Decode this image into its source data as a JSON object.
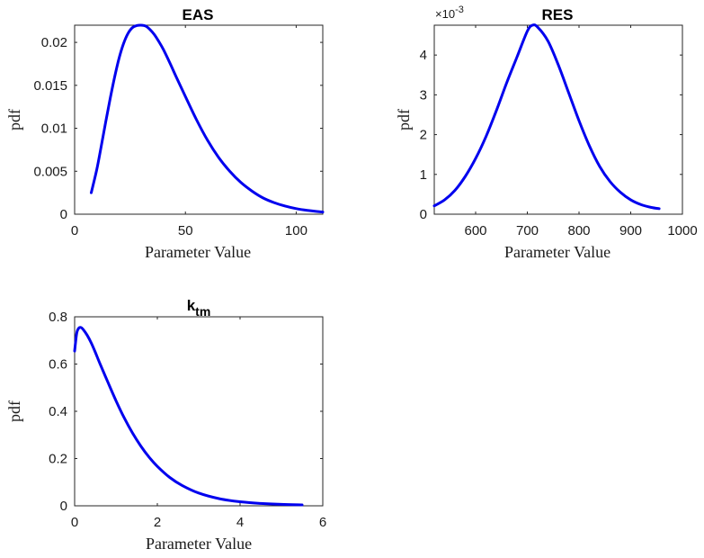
{
  "chart_data": [
    {
      "type": "line",
      "title": "EAS",
      "xlabel": "Parameter Value",
      "ylabel": "pdf",
      "xlim": [
        0,
        112
      ],
      "ylim": [
        0,
        0.022
      ],
      "xticks": [
        0,
        50,
        100
      ],
      "xtick_labels": [
        "0",
        "50",
        "100"
      ],
      "yticks": [
        0,
        0.005,
        0.01,
        0.015,
        0.02
      ],
      "ytick_labels": [
        "0",
        "0.005",
        "0.01",
        "0.015",
        "0.02"
      ],
      "grid": false,
      "series": [
        {
          "color": "#0000ee",
          "x": [
            7.5,
            10,
            12,
            14,
            16,
            18,
            20,
            22,
            24,
            26,
            28,
            30,
            32,
            34,
            36,
            38,
            40,
            43,
            46,
            50,
            55,
            60,
            65,
            70,
            75,
            80,
            85,
            90,
            95,
            100,
            105,
            112
          ],
          "y": [
            0.0025,
            0.0052,
            0.0079,
            0.0107,
            0.0134,
            0.0159,
            0.0181,
            0.0198,
            0.021,
            0.0217,
            0.02195,
            0.022,
            0.0219,
            0.0215,
            0.0209,
            0.0201,
            0.0192,
            0.0176,
            0.0159,
            0.0137,
            0.011,
            0.0086,
            0.0066,
            0.005,
            0.0037,
            0.0027,
            0.0019,
            0.00135,
            0.00095,
            0.00065,
            0.00045,
            0.00025
          ]
        }
      ]
    },
    {
      "type": "line",
      "title": "RES",
      "xlabel": "Parameter Value",
      "ylabel": "pdf",
      "xlim": [
        520,
        1000
      ],
      "ylim": [
        0,
        4.75
      ],
      "y_exponent_base": "×10",
      "y_exponent_power": "-3",
      "xticks": [
        600,
        700,
        800,
        900,
        1000
      ],
      "xtick_labels": [
        "600",
        "700",
        "800",
        "900",
        "1000"
      ],
      "yticks": [
        0,
        1,
        2,
        3,
        4
      ],
      "ytick_labels": [
        "0",
        "1",
        "2",
        "3",
        "4"
      ],
      "grid": false,
      "series": [
        {
          "color": "#0000ee",
          "x": [
            520,
            540,
            560,
            580,
            600,
            620,
            640,
            660,
            680,
            700,
            710,
            720,
            740,
            760,
            780,
            800,
            820,
            840,
            860,
            880,
            900,
            920,
            940,
            955
          ],
          "y": [
            0.21,
            0.36,
            0.6,
            0.95,
            1.4,
            1.95,
            2.6,
            3.3,
            3.95,
            4.6,
            4.75,
            4.7,
            4.35,
            3.75,
            3.05,
            2.35,
            1.72,
            1.2,
            0.82,
            0.55,
            0.36,
            0.24,
            0.17,
            0.14
          ]
        }
      ]
    },
    {
      "type": "line",
      "title": "k",
      "title_subscript": "tm",
      "xlabel": "Parameter Value",
      "ylabel": "pdf",
      "xlim": [
        0,
        6
      ],
      "ylim": [
        0,
        0.8
      ],
      "xticks": [
        0,
        2,
        4,
        6
      ],
      "xtick_labels": [
        "0",
        "2",
        "4",
        "6"
      ],
      "yticks": [
        0,
        0.2,
        0.4,
        0.6,
        0.8
      ],
      "ytick_labels": [
        "0",
        "0.2",
        "0.4",
        "0.6",
        "0.8"
      ],
      "grid": false,
      "series": [
        {
          "color": "#0000ee",
          "x": [
            0,
            0.05,
            0.1,
            0.15,
            0.2,
            0.3,
            0.4,
            0.5,
            0.6,
            0.8,
            1.0,
            1.2,
            1.4,
            1.6,
            1.8,
            2.0,
            2.3,
            2.6,
            3.0,
            3.5,
            4.0,
            4.5,
            5.0,
            5.5
          ],
          "y": [
            0.655,
            0.73,
            0.752,
            0.755,
            0.748,
            0.723,
            0.69,
            0.65,
            0.607,
            0.525,
            0.445,
            0.372,
            0.308,
            0.253,
            0.206,
            0.167,
            0.12,
            0.086,
            0.054,
            0.03,
            0.017,
            0.01,
            0.006,
            0.004
          ]
        }
      ]
    }
  ]
}
